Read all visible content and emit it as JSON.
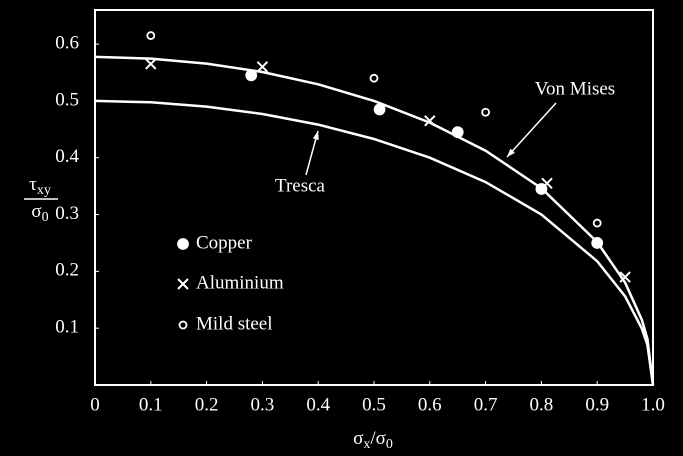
{
  "chart_data": {
    "type": "scatter",
    "xlabel": [
      "σ",
      "x",
      "/σ",
      "0"
    ],
    "ylabel": {
      "numerator": [
        "τ",
        "xy"
      ],
      "denominator": [
        "σ",
        "0"
      ]
    },
    "xlim": [
      0,
      1
    ],
    "ylim": [
      0,
      0.66
    ],
    "xticks": [
      0,
      0.1,
      0.2,
      0.3,
      0.4,
      0.5,
      0.6,
      0.7,
      0.8,
      0.9,
      {
        "value": 1,
        "label": "1.0"
      }
    ],
    "yticks": [
      0.1,
      0.2,
      0.3,
      0.4,
      0.5,
      0.6
    ],
    "series": [
      {
        "name": "Von Mises",
        "type": "line",
        "color": "#ffffff",
        "x": [
          0,
          0.1,
          0.2,
          0.3,
          0.4,
          0.5,
          0.6,
          0.7,
          0.8,
          0.9,
          0.95,
          0.98,
          0.99,
          1
        ],
        "values": [
          0.5774,
          0.5745,
          0.5657,
          0.5508,
          0.5292,
          0.5,
          0.4619,
          0.4123,
          0.3464,
          0.2517,
          0.1803,
          0.1149,
          0.0814,
          0
        ]
      },
      {
        "name": "Tresca",
        "type": "line",
        "color": "#ffffff",
        "x": [
          0,
          0.1,
          0.2,
          0.3,
          0.4,
          0.5,
          0.6,
          0.7,
          0.8,
          0.9,
          0.95,
          0.98,
          0.99,
          1
        ],
        "values": [
          0.5,
          0.4975,
          0.4899,
          0.477,
          0.4583,
          0.433,
          0.4,
          0.3571,
          0.3,
          0.2179,
          0.1561,
          0.0995,
          0.0705,
          0
        ]
      },
      {
        "name": "Copper",
        "type": "scatter",
        "marker": "filled-circle",
        "color": "#ffffff",
        "x": [
          0.28,
          0.51,
          0.65,
          0.8,
          0.9
        ],
        "values": [
          0.545,
          0.485,
          0.445,
          0.345,
          0.25
        ]
      },
      {
        "name": "Aluminium",
        "type": "scatter",
        "marker": "x",
        "color": "#ffffff",
        "x": [
          0.1,
          0.3,
          0.6,
          0.81,
          0.95
        ],
        "values": [
          0.565,
          0.56,
          0.465,
          0.355,
          0.19
        ]
      },
      {
        "name": "Mild steel",
        "type": "scatter",
        "marker": "open-circle",
        "color": "#ffffff",
        "x": [
          0.1,
          0.5,
          0.7,
          0.9
        ],
        "values": [
          0.615,
          0.54,
          0.48,
          0.285
        ]
      }
    ]
  }
}
